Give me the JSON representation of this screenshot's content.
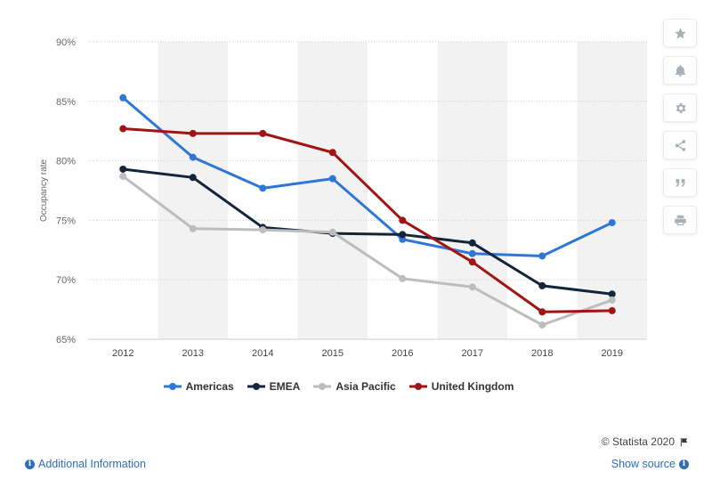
{
  "chart_data": {
    "type": "line",
    "categories": [
      "2012",
      "2013",
      "2014",
      "2015",
      "2016",
      "2017",
      "2018",
      "2019"
    ],
    "ylabel": "Occupancy rate",
    "xlabel": "",
    "ylim": [
      65,
      90
    ],
    "ytick_values": [
      65,
      70,
      75,
      80,
      85,
      90
    ],
    "ytick_labels": [
      "65%",
      "70%",
      "75%",
      "80%",
      "85%",
      "90%"
    ],
    "grid": "horizontal dotted",
    "legend_position": "bottom",
    "series": [
      {
        "name": "Americas",
        "color": "#2f77d6",
        "values": [
          85.3,
          80.3,
          77.7,
          78.5,
          73.4,
          72.2,
          72.0,
          74.8
        ]
      },
      {
        "name": "EMEA",
        "color": "#13253a",
        "values": [
          79.3,
          78.6,
          74.4,
          73.9,
          73.8,
          73.1,
          69.5,
          68.8
        ]
      },
      {
        "name": "Asia Pacific",
        "color": "#bdbdbd",
        "values": [
          78.7,
          74.3,
          74.2,
          74.0,
          70.1,
          69.4,
          66.2,
          68.3
        ]
      },
      {
        "name": "United Kingdom",
        "color": "#a01414",
        "values": [
          82.7,
          82.3,
          82.3,
          80.7,
          75.0,
          71.5,
          67.3,
          67.4
        ]
      }
    ]
  },
  "toolbar": {
    "icons": [
      "star-icon",
      "bell-icon",
      "gear-icon",
      "share-icon",
      "quote-icon",
      "print-icon"
    ]
  },
  "footer": {
    "credit": "© Statista 2020",
    "additional_info": "Additional Information",
    "show_source": "Show source"
  }
}
